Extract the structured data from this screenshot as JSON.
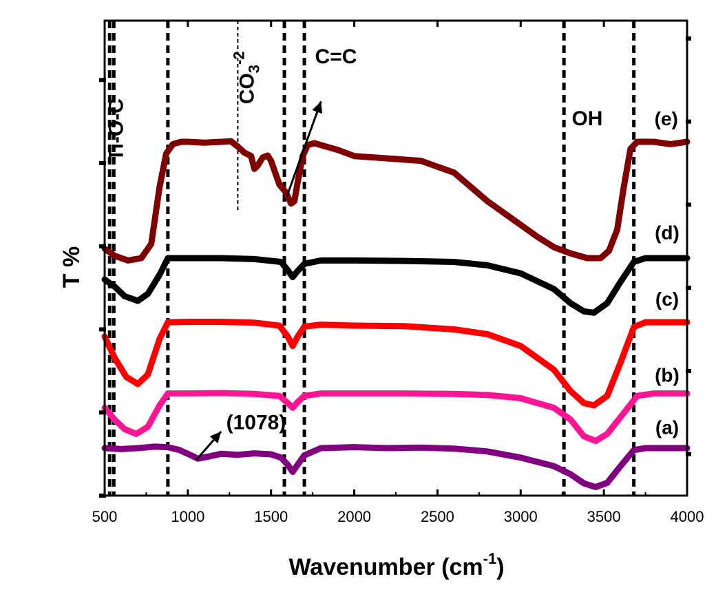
{
  "chart_data": {
    "type": "line",
    "title": "",
    "xlabel": "Wavenumber (cm",
    "xlabel_sup": "-1",
    "xlabel_close": ")",
    "ylabel": "T %",
    "xlim": [
      500,
      4000
    ],
    "ylim": [
      0,
      100
    ],
    "grid": false,
    "x_ticks": [
      500,
      1000,
      1500,
      2000,
      2500,
      3000,
      3500,
      4000
    ],
    "y_axis_tick_labels": false,
    "series": [
      {
        "name": "(a)",
        "color": "#800080",
        "points": [
          [
            500,
            10
          ],
          [
            600,
            9.8
          ],
          [
            700,
            10.0
          ],
          [
            800,
            10.3
          ],
          [
            880,
            10.2
          ],
          [
            950,
            9.6
          ],
          [
            1000,
            8.8
          ],
          [
            1060,
            7.8
          ],
          [
            1120,
            8.2
          ],
          [
            1200,
            8.8
          ],
          [
            1300,
            8.6
          ],
          [
            1400,
            8.9
          ],
          [
            1500,
            8.7
          ],
          [
            1560,
            8.0
          ],
          [
            1600,
            6.5
          ],
          [
            1630,
            5.0
          ],
          [
            1660,
            6.5
          ],
          [
            1700,
            8.5
          ],
          [
            1800,
            10.0
          ],
          [
            2000,
            10.2
          ],
          [
            2200,
            10.0
          ],
          [
            2400,
            10.1
          ],
          [
            2600,
            9.9
          ],
          [
            2800,
            9.3
          ],
          [
            3000,
            8.0
          ],
          [
            3200,
            6.2
          ],
          [
            3300,
            4.5
          ],
          [
            3380,
            2.6
          ],
          [
            3450,
            1.8
          ],
          [
            3520,
            2.7
          ],
          [
            3600,
            6.2
          ],
          [
            3680,
            9.6
          ],
          [
            3750,
            10.0
          ],
          [
            4000,
            10.0
          ]
        ]
      },
      {
        "name": "(b)",
        "color": "#ff1493",
        "points": [
          [
            500,
            18.5
          ],
          [
            560,
            16.0
          ],
          [
            620,
            14.0
          ],
          [
            690,
            13.0
          ],
          [
            760,
            14.5
          ],
          [
            830,
            19.0
          ],
          [
            880,
            21.5
          ],
          [
            1000,
            21.5
          ],
          [
            1200,
            21.6
          ],
          [
            1400,
            21.4
          ],
          [
            1550,
            21.0
          ],
          [
            1600,
            19.5
          ],
          [
            1630,
            18.5
          ],
          [
            1660,
            19.7
          ],
          [
            1700,
            21.0
          ],
          [
            1800,
            21.5
          ],
          [
            2000,
            21.5
          ],
          [
            2300,
            21.5
          ],
          [
            2600,
            21.4
          ],
          [
            2800,
            21.2
          ],
          [
            3000,
            20.5
          ],
          [
            3200,
            18.5
          ],
          [
            3300,
            16.0
          ],
          [
            3380,
            12.5
          ],
          [
            3450,
            11.5
          ],
          [
            3520,
            13.0
          ],
          [
            3600,
            16.5
          ],
          [
            3700,
            21.0
          ],
          [
            3800,
            21.5
          ],
          [
            4000,
            21.5
          ]
        ]
      },
      {
        "name": "(c)",
        "color": "#ff0000",
        "points": [
          [
            500,
            33.5
          ],
          [
            560,
            29.0
          ],
          [
            630,
            25.0
          ],
          [
            700,
            23.5
          ],
          [
            760,
            25.5
          ],
          [
            830,
            33.0
          ],
          [
            880,
            36.5
          ],
          [
            1000,
            36.6
          ],
          [
            1200,
            36.6
          ],
          [
            1400,
            36.4
          ],
          [
            1550,
            35.8
          ],
          [
            1600,
            33.5
          ],
          [
            1630,
            31.5
          ],
          [
            1660,
            33.5
          ],
          [
            1700,
            35.6
          ],
          [
            1800,
            36.0
          ],
          [
            2000,
            35.8
          ],
          [
            2300,
            35.7
          ],
          [
            2600,
            35.0
          ],
          [
            2800,
            34.0
          ],
          [
            3000,
            31.5
          ],
          [
            3200,
            26.5
          ],
          [
            3300,
            22.0
          ],
          [
            3380,
            19.5
          ],
          [
            3440,
            19.0
          ],
          [
            3520,
            21.0
          ],
          [
            3600,
            28.0
          ],
          [
            3680,
            35.5
          ],
          [
            3750,
            36.5
          ],
          [
            4000,
            36.5
          ]
        ]
      },
      {
        "name": "(d)",
        "color": "#000000",
        "points": [
          [
            500,
            45.5
          ],
          [
            560,
            44.0
          ],
          [
            620,
            42.0
          ],
          [
            700,
            41.0
          ],
          [
            760,
            42.5
          ],
          [
            830,
            46.5
          ],
          [
            880,
            50.0
          ],
          [
            1000,
            50.0
          ],
          [
            1200,
            50.0
          ],
          [
            1400,
            49.8
          ],
          [
            1560,
            49.2
          ],
          [
            1600,
            47.5
          ],
          [
            1630,
            46.0
          ],
          [
            1660,
            47.3
          ],
          [
            1700,
            48.8
          ],
          [
            1800,
            49.5
          ],
          [
            2000,
            49.5
          ],
          [
            2300,
            49.4
          ],
          [
            2600,
            49.2
          ],
          [
            2800,
            48.5
          ],
          [
            3000,
            46.8
          ],
          [
            3200,
            43.5
          ],
          [
            3300,
            40.5
          ],
          [
            3380,
            38.8
          ],
          [
            3440,
            38.5
          ],
          [
            3520,
            40.5
          ],
          [
            3600,
            45.0
          ],
          [
            3680,
            49.2
          ],
          [
            3750,
            50.0
          ],
          [
            4000,
            50.0
          ]
        ]
      },
      {
        "name": "(e)",
        "color": "#800000",
        "points": [
          [
            500,
            52.0
          ],
          [
            560,
            50.5
          ],
          [
            640,
            49.5
          ],
          [
            720,
            50.0
          ],
          [
            780,
            53.0
          ],
          [
            830,
            65.0
          ],
          [
            870,
            72.0
          ],
          [
            910,
            74.0
          ],
          [
            960,
            74.5
          ],
          [
            1000,
            74.5
          ],
          [
            1100,
            74.3
          ],
          [
            1200,
            74.5
          ],
          [
            1260,
            74.6
          ],
          [
            1300,
            73.5
          ],
          [
            1340,
            72.2
          ],
          [
            1380,
            71.5
          ],
          [
            1400,
            68.8
          ],
          [
            1420,
            69.5
          ],
          [
            1450,
            71.2
          ],
          [
            1480,
            71.6
          ],
          [
            1500,
            70.5
          ],
          [
            1520,
            68.5
          ],
          [
            1550,
            65.5
          ],
          [
            1590,
            63.8
          ],
          [
            1620,
            61.5
          ],
          [
            1640,
            62.0
          ],
          [
            1660,
            66.0
          ],
          [
            1690,
            71.5
          ],
          [
            1720,
            73.8
          ],
          [
            1760,
            74.2
          ],
          [
            1800,
            73.8
          ],
          [
            1900,
            72.8
          ],
          [
            2000,
            71.5
          ],
          [
            2200,
            71.0
          ],
          [
            2400,
            70.5
          ],
          [
            2600,
            68.0
          ],
          [
            2800,
            62.0
          ],
          [
            3000,
            57.0
          ],
          [
            3100,
            54.5
          ],
          [
            3200,
            52.3
          ],
          [
            3300,
            51.0
          ],
          [
            3400,
            50.0
          ],
          [
            3480,
            50.0
          ],
          [
            3530,
            51.5
          ],
          [
            3580,
            56.0
          ],
          [
            3620,
            65.0
          ],
          [
            3660,
            73.0
          ],
          [
            3700,
            74.5
          ],
          [
            3800,
            74.5
          ],
          [
            3900,
            74.0
          ],
          [
            4000,
            74.5
          ]
        ]
      }
    ],
    "reference_lines": [
      {
        "x": 530,
        "style": "bold-dashed"
      },
      {
        "x": 555,
        "style": "bold-dashed"
      },
      {
        "x": 880,
        "style": "bold-dashed"
      },
      {
        "x": 1300,
        "style": "thin-dashed",
        "y_from": 60,
        "y_to": 100
      },
      {
        "x": 1580,
        "style": "bold-dashed"
      },
      {
        "x": 1700,
        "style": "bold-dashed"
      },
      {
        "x": 3260,
        "style": "bold-dashed"
      },
      {
        "x": 3680,
        "style": "bold-dashed"
      }
    ],
    "annotations": [
      {
        "text": "Ti-O-C",
        "x": 610,
        "y": 77,
        "rotate": -90
      },
      {
        "text": "CO",
        "sub": "3",
        "sup": "-2",
        "x": 1395,
        "y": 88,
        "rotate": -90
      },
      {
        "text": "C=C",
        "x": 1890,
        "y": 91
      },
      {
        "text": "OH",
        "x": 3400,
        "y": 78
      },
      {
        "text": "(1078)",
        "x": 1410,
        "y": 14
      }
    ],
    "series_labels": [
      {
        "text": "(e)",
        "x": 3875,
        "y": 78
      },
      {
        "text": "(d)",
        "x": 3880,
        "y": 54
      },
      {
        "text": "(c)",
        "x": 3880,
        "y": 40
      },
      {
        "text": "(b)",
        "x": 3880,
        "y": 24
      },
      {
        "text": "(a)",
        "x": 3880,
        "y": 13
      }
    ],
    "arrows": [
      {
        "from": [
          1595,
          63
        ],
        "to": [
          1800,
          83
        ]
      },
      {
        "from": [
          1050,
          7.5
        ],
        "to": [
          1200,
          13.5
        ]
      }
    ]
  }
}
